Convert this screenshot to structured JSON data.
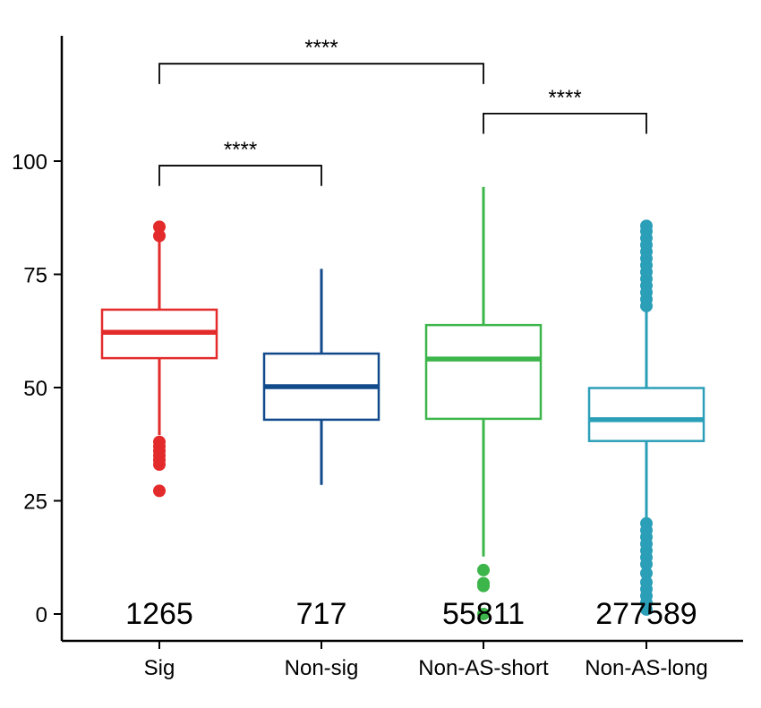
{
  "chart_data": {
    "type": "box",
    "title": "",
    "xlabel": "",
    "ylabel": "",
    "ylim": [
      -5,
      127
    ],
    "yticks": [
      0,
      25,
      50,
      75,
      100
    ],
    "ytick_labels": [
      "0",
      "25",
      "50",
      "75",
      "100"
    ],
    "grid": false,
    "legend": "none",
    "categories": [
      "Sig",
      "Non-sig",
      "Non-AS-short",
      "Non-AS-long"
    ],
    "boxes": [
      {
        "category": "Sig",
        "color": "#e32b2b",
        "whisker_low": 39.5,
        "q1": 56.5,
        "median": 62.2,
        "q3": 67.2,
        "whisker_high": 83.5,
        "outliers": [
          27.2,
          33,
          34,
          35,
          36,
          37,
          38,
          83.5,
          85.5
        ],
        "n_label": "1265"
      },
      {
        "category": "Non-sig",
        "color": "#114a8b",
        "whisker_low": 28.5,
        "q1": 42.9,
        "median": 50.2,
        "q3": 57.5,
        "whisker_high": 76.2,
        "outliers": [],
        "n_label": "717"
      },
      {
        "category": "Non-AS-short",
        "color": "#3cb54a",
        "whisker_low": 12.7,
        "q1": 43.1,
        "median": 56.3,
        "q3": 63.8,
        "whisker_high": 94.3,
        "outliers": [
          0.0,
          6.2,
          6.8,
          9.7
        ],
        "n_label": "55811"
      },
      {
        "category": "Non-AS-long",
        "color": "#2b9fb8",
        "whisker_low": 21.0,
        "q1": 38.2,
        "median": 42.9,
        "q3": 49.9,
        "whisker_high": 67.0,
        "outliers": [
          1.0,
          2.5,
          4.0,
          5.5,
          7.0,
          9.0,
          11.0,
          12.5,
          14.0,
          15.5,
          17.0,
          18.5,
          20.0,
          68,
          69.5,
          71,
          72.5,
          74,
          75.5,
          77,
          78.5,
          80,
          81.5,
          83,
          84.5,
          85.7
        ],
        "n_label": "277589"
      }
    ],
    "comparisons": [
      {
        "from": "Sig",
        "to": "Non-sig",
        "label": "****",
        "y": 99,
        "drop": 2.5
      },
      {
        "from": "Sig",
        "to": "Non-AS-short",
        "label": "****",
        "y": 121.5,
        "drop": 2.5
      },
      {
        "from": "Non-AS-short",
        "to": "Non-AS-long",
        "label": "****",
        "y": 110.5,
        "drop": 2.5
      }
    ]
  }
}
